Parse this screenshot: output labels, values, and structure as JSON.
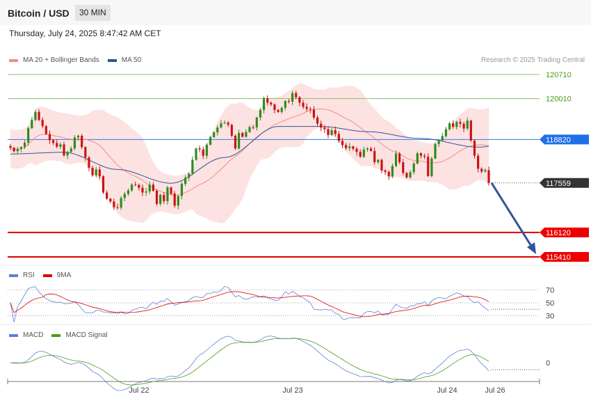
{
  "header": {
    "title": "Bitcoin / USD",
    "timeframe": "30 MIN"
  },
  "timestamp": "Thursday, July 24, 2025 8:47:42 AM CET",
  "credit": "Research © 2025 Trading Central",
  "legends": {
    "main": [
      {
        "label": "MA 20 + Bollinger Bands",
        "color": "#f28c8c"
      },
      {
        "label": "MA 50",
        "color": "#2f5597"
      }
    ],
    "rsi": [
      {
        "label": "RSI",
        "color": "#5b7fd6"
      },
      {
        "label": "9MA",
        "color": "#e00000"
      }
    ],
    "macd": [
      {
        "label": "MACD",
        "color": "#5b7fd6"
      },
      {
        "label": "MACD Signal",
        "color": "#4a9a1a"
      }
    ]
  },
  "chart_data": {
    "type": "candlestick",
    "x_ticks": [
      "Jul 22",
      "Jul 23",
      "Jul 24",
      "Jul 26"
    ],
    "y_range": [
      115410,
      120710
    ],
    "levels": [
      {
        "value": 120710,
        "label": "120710",
        "style": "green-line"
      },
      {
        "value": 120010,
        "label": "120010",
        "style": "green-line"
      },
      {
        "value": 118820,
        "label": "118820",
        "style": "blue-tag"
      },
      {
        "value": 117559,
        "label": "117559",
        "style": "price-tag"
      },
      {
        "value": 116120,
        "label": "116120",
        "style": "red-tag"
      },
      {
        "value": 115410,
        "label": "115410",
        "style": "red-tag"
      }
    ],
    "closes": [
      118580,
      118480,
      118550,
      118600,
      118730,
      119150,
      119390,
      119620,
      119390,
      119210,
      118980,
      118800,
      118720,
      118610,
      118680,
      118360,
      118460,
      118560,
      118880,
      118930,
      118600,
      118300,
      118000,
      117780,
      117950,
      117750,
      117280,
      117100,
      117020,
      116850,
      116840,
      117120,
      117240,
      117340,
      117510,
      117500,
      117420,
      117280,
      117310,
      117510,
      117330,
      116950,
      117210,
      117030,
      117430,
      117250,
      116900,
      117180,
      117530,
      117710,
      117830,
      118230,
      118560,
      118530,
      118350,
      118670,
      118890,
      119030,
      119170,
      119290,
      119310,
      119250,
      118930,
      118560,
      119010,
      118900,
      119040,
      119180,
      119170,
      119460,
      119680,
      120020,
      119890,
      119840,
      119680,
      119620,
      119740,
      119940,
      119920,
      120170,
      120050,
      119890,
      119770,
      119710,
      119690,
      119460,
      119280,
      119170,
      119120,
      118950,
      119090,
      118980,
      118780,
      118660,
      118570,
      118620,
      118550,
      118460,
      118320,
      118530,
      118560,
      118490,
      118160,
      118230,
      117920,
      117880,
      117750,
      118050,
      118410,
      118160,
      117850,
      117720,
      117870,
      118120,
      118420,
      118350,
      118320,
      117760,
      118270,
      118690,
      118790,
      118920,
      119120,
      119290,
      119190,
      119330,
      119280,
      119140,
      119370,
      118790,
      118350,
      117970,
      117890,
      117930,
      117559
    ],
    "ma50_anchors": [
      [
        0,
        118400
      ],
      [
        15,
        118450
      ],
      [
        30,
        117950
      ],
      [
        45,
        117550
      ],
      [
        60,
        118300
      ],
      [
        75,
        119200
      ],
      [
        87,
        119200
      ],
      [
        100,
        119050
      ],
      [
        115,
        118850
      ],
      [
        131,
        118600
      ]
    ],
    "rsi": {
      "levels": [
        70,
        50,
        30
      ],
      "last": 40
    },
    "macd": {
      "zero_label": "0"
    }
  }
}
